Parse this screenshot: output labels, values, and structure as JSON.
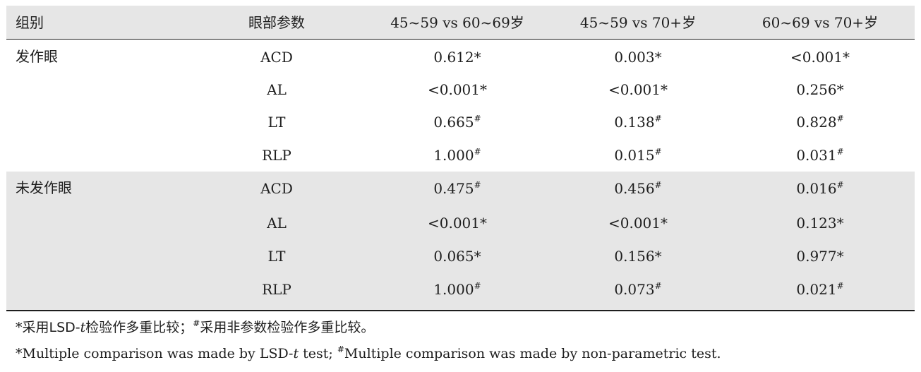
{
  "table": {
    "headers": [
      "组别",
      "眼部参数",
      "45~59 vs 60~69岁",
      "45~59 vs 70+岁",
      "60~69 vs 70+岁"
    ],
    "groups": [
      {
        "name": "发作眼",
        "rows": [
          {
            "param": "ACD",
            "cells": [
              {
                "v": "0.612",
                "m": "*"
              },
              {
                "v": "0.003",
                "m": "*"
              },
              {
                "v": "<0.001",
                "m": "*"
              }
            ]
          },
          {
            "param": "AL",
            "cells": [
              {
                "v": "<0.001",
                "m": "*"
              },
              {
                "v": "<0.001",
                "m": "*"
              },
              {
                "v": "0.256",
                "m": "*"
              }
            ]
          },
          {
            "param": "LT",
            "cells": [
              {
                "v": "0.665",
                "m": "#"
              },
              {
                "v": "0.138",
                "m": "#"
              },
              {
                "v": "0.828",
                "m": "#"
              }
            ]
          },
          {
            "param": "RLP",
            "cells": [
              {
                "v": "1.000",
                "m": "#"
              },
              {
                "v": "0.015",
                "m": "#"
              },
              {
                "v": "0.031",
                "m": "#"
              }
            ]
          }
        ]
      },
      {
        "name": "未发作眼",
        "rows": [
          {
            "param": "ACD",
            "cells": [
              {
                "v": "0.475",
                "m": "#"
              },
              {
                "v": "0.456",
                "m": "#"
              },
              {
                "v": "0.016",
                "m": "#"
              }
            ]
          },
          {
            "param": "AL",
            "cells": [
              {
                "v": "<0.001",
                "m": "*"
              },
              {
                "v": "<0.001",
                "m": "*"
              },
              {
                "v": "0.123",
                "m": "*"
              }
            ]
          },
          {
            "param": "LT",
            "cells": [
              {
                "v": "0.065",
                "m": "*"
              },
              {
                "v": "0.156",
                "m": "*"
              },
              {
                "v": "0.977",
                "m": "*"
              }
            ]
          },
          {
            "param": "RLP",
            "cells": [
              {
                "v": "1.000",
                "m": "#"
              },
              {
                "v": "0.073",
                "m": "#"
              },
              {
                "v": "0.021",
                "m": "#"
              }
            ]
          }
        ]
      }
    ]
  },
  "footnotes": {
    "cn": {
      "star": "*",
      "part1": "采用LSD-",
      "t": "t",
      "part2": "检验作多重比较；",
      "hash": "#",
      "part3": "采用非参数检验作多重比较。"
    },
    "en": {
      "star": "*",
      "part1": "Multiple comparison was made by LSD-",
      "t": "t",
      "part2": " test; ",
      "hash": "#",
      "part3": "Multiple comparison was made by non-parametric test."
    }
  },
  "colors": {
    "band": "#e6e6e6",
    "rule": "#1e1e1e",
    "text": "#1e1e1e"
  }
}
